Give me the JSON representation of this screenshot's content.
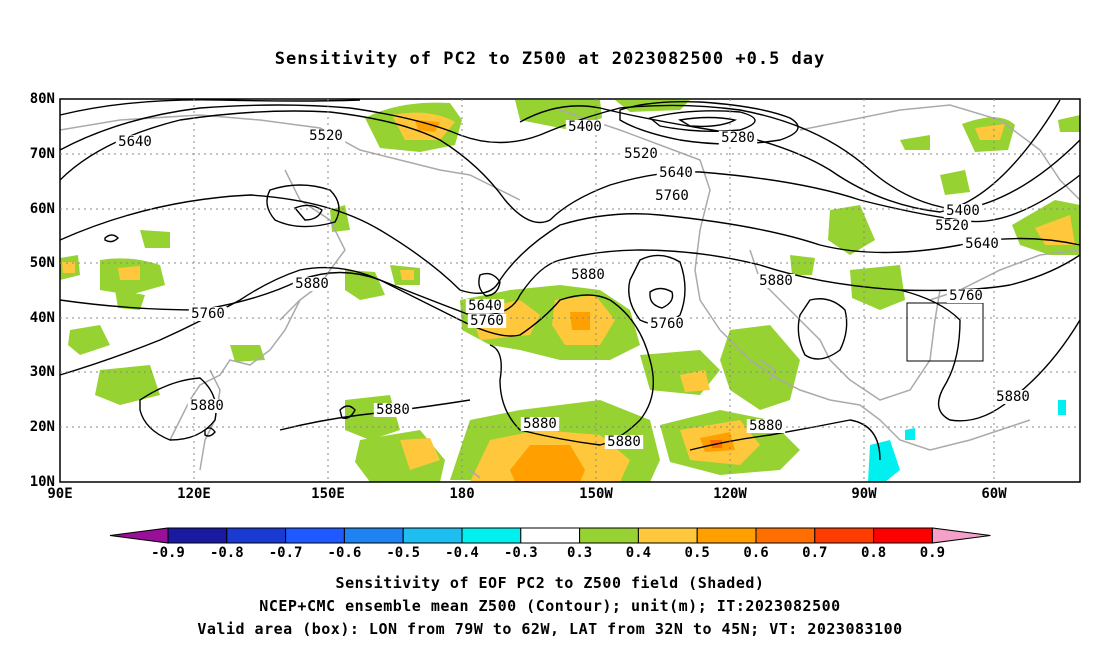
{
  "title": "Sensitivity of PC2 to Z500 at 2023082500 +0.5 day",
  "lat_labels": [
    "80N",
    "70N",
    "60N",
    "50N",
    "40N",
    "30N",
    "20N",
    "10N"
  ],
  "lon_labels": [
    "90E",
    "120E",
    "150E",
    "180",
    "150W",
    "120W",
    "90W",
    "60W"
  ],
  "contour_labels": [
    {
      "text": "5640"
    },
    {
      "text": "5520"
    },
    {
      "text": "5400"
    },
    {
      "text": "5280"
    },
    {
      "text": "5520"
    },
    {
      "text": "5640"
    },
    {
      "text": "5760"
    },
    {
      "text": "5400"
    },
    {
      "text": "5520"
    },
    {
      "text": "5640"
    },
    {
      "text": "5880"
    },
    {
      "text": "5760"
    },
    {
      "text": "5880"
    },
    {
      "text": "5640"
    },
    {
      "text": "5760"
    },
    {
      "text": "5760"
    },
    {
      "text": "5880"
    },
    {
      "text": "5760"
    },
    {
      "text": "5880"
    },
    {
      "text": "5880"
    },
    {
      "text": "5880"
    },
    {
      "text": "5880"
    },
    {
      "text": "5880"
    },
    {
      "text": "5880"
    }
  ],
  "colorbar": {
    "colors": [
      "#9a0f9a",
      "#1a1aa0",
      "#1a3ad2",
      "#1e5aff",
      "#1e82f0",
      "#1ebef0",
      "#00f0f0",
      "#ffffff",
      "#96d232",
      "#ffc83c",
      "#ffa000",
      "#ff6e00",
      "#ff3c00",
      "#ff0000",
      "#f5a0c8"
    ],
    "labels": [
      "-0.9",
      "-0.8",
      "-0.7",
      "-0.6",
      "-0.5",
      "-0.4",
      "-0.3",
      "0.3",
      "0.4",
      "0.5",
      "0.6",
      "0.7",
      "0.8",
      "0.9"
    ]
  },
  "shade_colors": {
    "green": "#96d232",
    "yellow": "#ffc83c",
    "orange": "#ffa000",
    "red_orange": "#ff6e00",
    "cyan": "#00f0f0"
  },
  "footer": {
    "line1": "Sensitivity of EOF PC2 to Z500 field (Shaded)",
    "line2": "NCEP+CMC ensemble mean Z500 (Contour); unit(m); IT:2023082500",
    "line3": "Valid area (box): LON from 79W to 62W, LAT from 32N to 45N; VT: 2023083100"
  }
}
